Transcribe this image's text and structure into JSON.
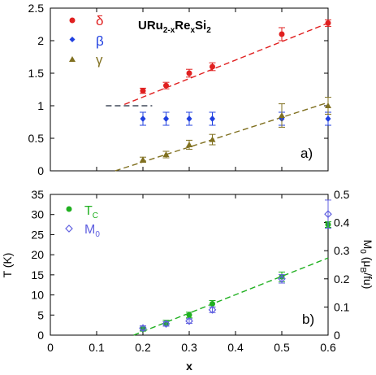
{
  "chart_data": [
    {
      "type": "scatter",
      "panel_label": "a)",
      "annotation": {
        "base": "URu",
        "sub1": "2-x",
        "mid": "Re",
        "sub2": "x",
        "tail": "Si",
        "sub3": "2"
      },
      "xlim": [
        0,
        0.6
      ],
      "ylim": [
        0,
        2.5
      ],
      "yticks": [
        "0",
        "0.5",
        "1",
        "1.5",
        "2",
        "2.5"
      ],
      "grid": false,
      "legend_position": "top-left",
      "series": [
        {
          "name": "δ",
          "color": "#e02020",
          "marker": "circle",
          "x": [
            0.2,
            0.25,
            0.3,
            0.35,
            0.5,
            0.6
          ],
          "y": [
            1.23,
            1.31,
            1.5,
            1.6,
            2.1,
            2.27
          ],
          "err": [
            0.04,
            0.05,
            0.06,
            0.06,
            0.1,
            0.05
          ]
        },
        {
          "name": "β",
          "color": "#2040e0",
          "marker": "diamond",
          "x": [
            0.2,
            0.25,
            0.3,
            0.35,
            0.5,
            0.6
          ],
          "y": [
            0.8,
            0.8,
            0.8,
            0.8,
            0.8,
            0.8
          ],
          "err": [
            0.1,
            0.1,
            0.1,
            0.1,
            0.1,
            0.1
          ]
        },
        {
          "name": "γ",
          "color": "#807020",
          "marker": "triangle",
          "x": [
            0.2,
            0.25,
            0.3,
            0.35,
            0.5,
            0.6
          ],
          "y": [
            0.17,
            0.25,
            0.4,
            0.48,
            0.85,
            1.0
          ],
          "err": [
            0.04,
            0.05,
            0.07,
            0.08,
            0.18,
            0.13
          ]
        }
      ],
      "fit_lines": [
        {
          "color": "#e02020",
          "x": [
            0.16,
            0.6
          ],
          "y": [
            1.02,
            2.27
          ]
        },
        {
          "color": "#807020",
          "x": [
            0.14,
            0.6
          ],
          "y": [
            0.0,
            1.05
          ]
        },
        {
          "color": "#404a5a",
          "x": [
            0.12,
            0.22
          ],
          "y": [
            1.0,
            1.0
          ]
        }
      ]
    },
    {
      "type": "scatter",
      "panel_label": "b)",
      "xlabel": "x",
      "ylabel_left": "T (K)",
      "ylabel_right_parts": {
        "a": "M",
        "b": "0",
        "c": " (μ",
        "d": "B",
        "e": "/fu)"
      },
      "xlim": [
        0,
        0.6
      ],
      "ylim_left": [
        0,
        35
      ],
      "ylim_right": [
        0,
        0.5
      ],
      "xticks": [
        "0",
        "0.1",
        "0.2",
        "0.3",
        "0.4",
        "0.5",
        "0.6"
      ],
      "yticks_left": [
        "0",
        "5",
        "10",
        "15",
        "20",
        "25",
        "30",
        "35"
      ],
      "yticks_right": [
        "0",
        "0.1",
        "0.2",
        "0.3",
        "0.4",
        "0.5"
      ],
      "grid": false,
      "legend_position": "top-left",
      "series": [
        {
          "name_main": "T",
          "name_sub": "C",
          "color": "#20b020",
          "marker": "circle",
          "axis": "left",
          "x": [
            0.2,
            0.25,
            0.3,
            0.35,
            0.5,
            0.6
          ],
          "y": [
            1.5,
            3.0,
            5.0,
            7.8,
            14.5,
            27.5
          ],
          "err": [
            0.5,
            0.7,
            0.7,
            0.8,
            1.2,
            0.7
          ]
        },
        {
          "name_main": "M",
          "name_sub": "0",
          "color": "#6060e0",
          "marker": "diamond-open",
          "axis": "right",
          "x": [
            0.2,
            0.25,
            0.3,
            0.35,
            0.5,
            0.6
          ],
          "y": [
            0.025,
            0.04,
            0.05,
            0.09,
            0.2,
            0.43
          ],
          "err": [
            0.008,
            0.008,
            0.008,
            0.01,
            0.015,
            0.05
          ]
        }
      ],
      "fit_lines": [
        {
          "color": "#20b020",
          "axis": "left",
          "x": [
            0.18,
            0.6
          ],
          "y": [
            0.0,
            19.2
          ]
        }
      ]
    }
  ]
}
